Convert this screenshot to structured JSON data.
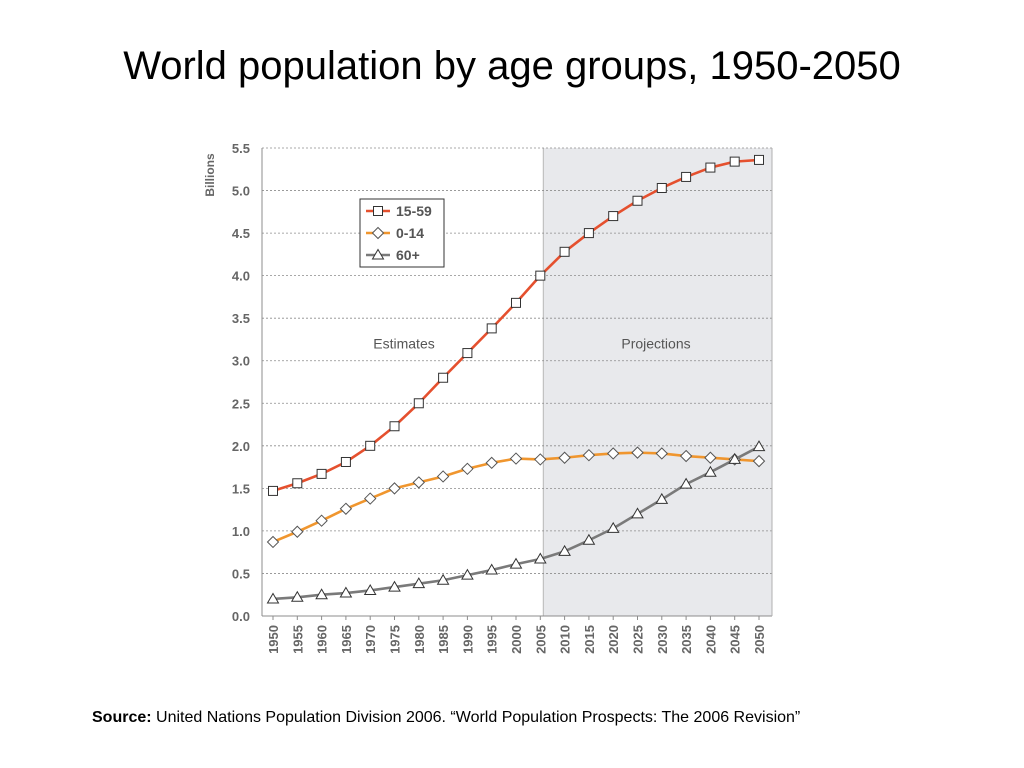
{
  "slide": {
    "title": "World population by age groups, 1950-2050",
    "source_label": "Source:",
    "source_text": "United Nations Population Division 2006. “World Population Prospects: The 2006 Revision”"
  },
  "chart_data": {
    "type": "line",
    "title": "",
    "ylabel": "Billions",
    "xlabel": "",
    "ylim": [
      0,
      5.5
    ],
    "yticks": [
      "0.0",
      "0.5",
      "1.0",
      "1.5",
      "2.0",
      "2.5",
      "3.0",
      "3.5",
      "4.0",
      "4.5",
      "5.0",
      "5.5"
    ],
    "grid": true,
    "legend_position": "top-left",
    "x": [
      "1950",
      "1955",
      "1960",
      "1965",
      "1970",
      "1975",
      "1980",
      "1985",
      "1990",
      "1995",
      "2000",
      "2005",
      "2010",
      "2015",
      "2020",
      "2025",
      "2030",
      "2035",
      "2040",
      "2045",
      "2050"
    ],
    "region_labels": {
      "estimates": "Estimates",
      "projections": "Projections"
    },
    "projection_start": "2005",
    "projection_shade_color": "#e8e9ec",
    "series": [
      {
        "name": "15-59",
        "marker": "square",
        "color": "#e5502e",
        "values": [
          1.47,
          1.56,
          1.67,
          1.81,
          2.0,
          2.23,
          2.5,
          2.8,
          3.09,
          3.38,
          3.68,
          4.0,
          4.28,
          4.5,
          4.7,
          4.88,
          5.03,
          5.16,
          5.27,
          5.34,
          5.36
        ]
      },
      {
        "name": "0-14",
        "marker": "diamond",
        "color": "#f0962e",
        "values": [
          0.87,
          0.99,
          1.12,
          1.26,
          1.38,
          1.5,
          1.57,
          1.64,
          1.73,
          1.8,
          1.85,
          1.84,
          1.86,
          1.89,
          1.91,
          1.92,
          1.91,
          1.88,
          1.86,
          1.84,
          1.82
        ]
      },
      {
        "name": "60+",
        "marker": "triangle",
        "color": "#7a7a7a",
        "values": [
          0.2,
          0.22,
          0.25,
          0.27,
          0.3,
          0.34,
          0.38,
          0.42,
          0.48,
          0.54,
          0.61,
          0.67,
          0.76,
          0.89,
          1.03,
          1.2,
          1.37,
          1.55,
          1.69,
          1.84,
          1.99
        ]
      }
    ]
  }
}
